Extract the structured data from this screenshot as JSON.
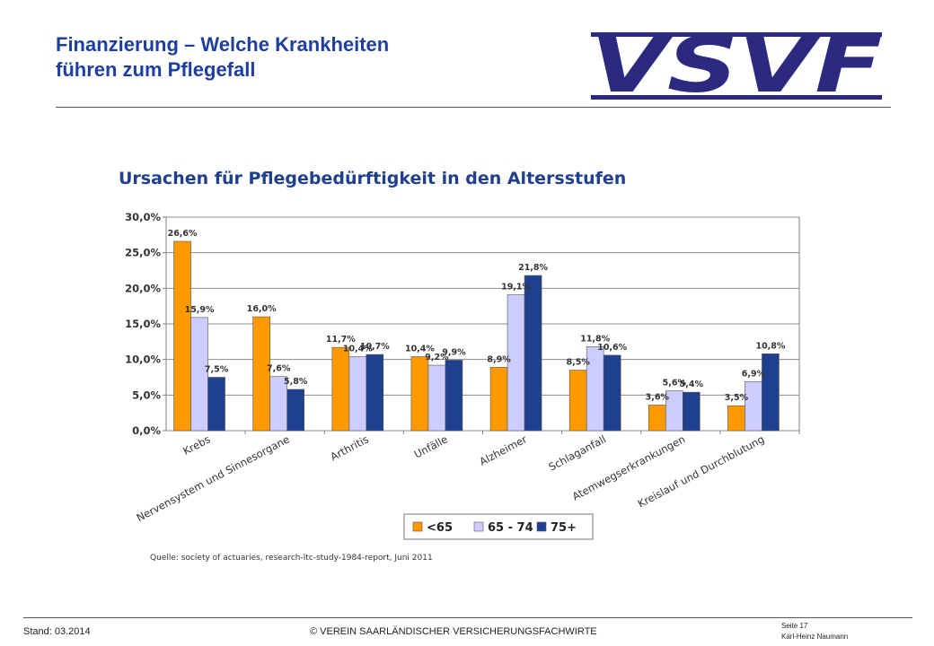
{
  "slide": {
    "title_line1": "Finanzierung – Welche Krankheiten",
    "title_line2": "führen zum Pflegefall",
    "logo_text": "VSVF"
  },
  "footer": {
    "stand": "Stand: 03.2014",
    "copyright": "© VEREIN SAARLÄNDISCHER VERSICHERUNGSFACHWIRTE",
    "page": "Seite 17",
    "author": "Karl-Heinz Naumann"
  },
  "colors": {
    "title": "#1f3fa0",
    "logo": "#2b2a80",
    "series": [
      "#ff9900",
      "#ccccff",
      "#1f3f8f"
    ]
  },
  "chart_data": {
    "type": "bar",
    "title": "Ursachen für Pflegebedürftigkeit in den Altersstufen",
    "categories": [
      "Krebs",
      "Nervensystem und Sinnesorgane",
      "Arthritis",
      "Unfälle",
      "Alzheimer",
      "Schlaganfall",
      "Atemwegserkrankungen",
      "Kreislauf und Durchblutung"
    ],
    "series": [
      {
        "name": "<65",
        "values": [
          26.6,
          16.0,
          11.7,
          10.4,
          8.9,
          8.5,
          3.6,
          3.5
        ],
        "labels": [
          "26,6%",
          "16,0%",
          "11,7%",
          "10,4%",
          "8,9%",
          "8,5%",
          "3,6%",
          "3,5%"
        ]
      },
      {
        "name": "65 - 74",
        "values": [
          15.9,
          7.6,
          10.4,
          9.2,
          19.1,
          11.8,
          5.6,
          6.9
        ],
        "labels": [
          "15,9%",
          "7,6%",
          "10,4%",
          "9,2%",
          "19,1%",
          "11,8%",
          "5,6%",
          "6,9%"
        ]
      },
      {
        "name": "75+",
        "values": [
          7.5,
          5.8,
          10.7,
          9.9,
          21.8,
          10.6,
          5.4,
          10.8
        ],
        "labels": [
          "7,5%",
          "5,8%",
          "10,7%",
          "9,9%",
          "21,8%",
          "10,6%",
          "5,4%",
          "10,8%"
        ]
      }
    ],
    "y_ticks": [
      "0,0%",
      "5,0%",
      "10,0%",
      "15,0%",
      "20,0%",
      "25,0%",
      "30,0%"
    ],
    "ylim": [
      0,
      30
    ],
    "grid": true,
    "legend_position": "bottom-center",
    "source": "Quelle: society of actuaries, research-ltc-study-1984-report, Juni 2011"
  }
}
